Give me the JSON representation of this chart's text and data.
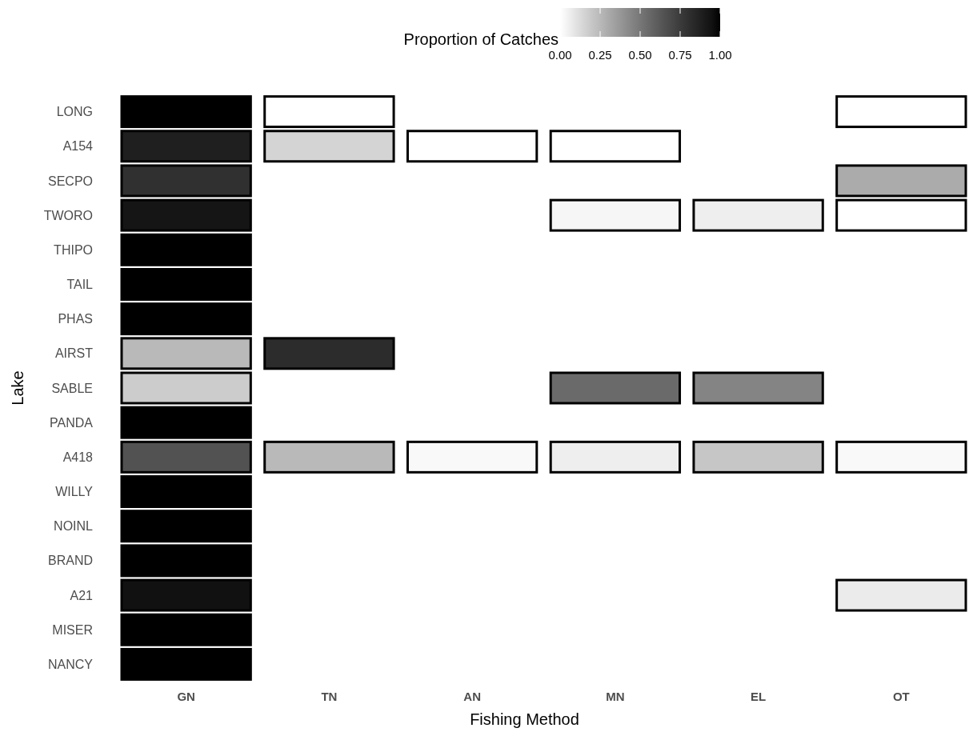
{
  "chart_data": {
    "type": "heatmap",
    "xlabel": "Fishing Method",
    "ylabel": "Lake",
    "legend_title": "Proportion of Catches",
    "categories": [
      "GN",
      "TN",
      "AN",
      "MN",
      "EL",
      "OT"
    ],
    "y_categories": [
      "LONG",
      "A154",
      "SECPO",
      "TWORO",
      "THIPO",
      "TAIL",
      "PHAS",
      "AIRST",
      "SABLE",
      "PANDA",
      "A418",
      "WILLY",
      "NOINL",
      "BRAND",
      "A21",
      "MISER",
      "NANCY"
    ],
    "cells": [
      [
        1.0,
        0.0,
        null,
        null,
        null,
        0.0
      ],
      [
        0.88,
        0.15,
        0.0,
        0.0,
        null,
        null
      ],
      [
        0.8,
        null,
        null,
        null,
        null,
        0.3
      ],
      [
        0.93,
        null,
        null,
        0.03,
        0.06,
        0.0
      ],
      [
        1.0,
        null,
        null,
        null,
        null,
        null
      ],
      [
        1.0,
        null,
        null,
        null,
        null,
        null
      ],
      [
        1.0,
        null,
        null,
        null,
        null,
        null
      ],
      [
        0.25,
        0.82,
        null,
        null,
        null,
        null
      ],
      [
        0.18,
        null,
        null,
        0.55,
        0.45,
        null
      ],
      [
        1.0,
        null,
        null,
        null,
        null,
        null
      ],
      [
        0.65,
        0.25,
        0.02,
        0.06,
        0.2,
        0.02
      ],
      [
        1.0,
        null,
        null,
        null,
        null,
        null
      ],
      [
        1.0,
        null,
        null,
        null,
        null,
        null
      ],
      [
        1.0,
        null,
        null,
        null,
        null,
        null
      ],
      [
        0.95,
        null,
        null,
        null,
        null,
        0.07
      ],
      [
        1.0,
        null,
        null,
        null,
        null,
        null
      ],
      [
        1.0,
        null,
        null,
        null,
        null,
        null
      ]
    ],
    "clim": [
      0,
      1
    ],
    "cticks": [
      {
        "value": 0,
        "label": "0.00"
      },
      {
        "value": 0.25,
        "label": "0.25"
      },
      {
        "value": 0.5,
        "label": "0.50"
      },
      {
        "value": 0.75,
        "label": "0.75"
      },
      {
        "value": 1,
        "label": "1.00"
      }
    ],
    "grid": false
  }
}
